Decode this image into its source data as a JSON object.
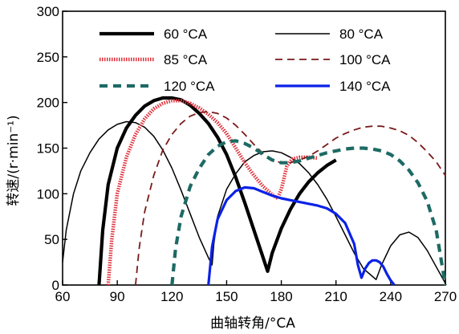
{
  "chart_data": {
    "type": "line",
    "title": "",
    "xlabel": "曲轴转角/°CA",
    "ylabel": "转速/(r·min⁻¹)",
    "xlim": [
      60,
      270
    ],
    "ylim": [
      0,
      300
    ],
    "xticks": [
      60,
      90,
      120,
      150,
      180,
      210,
      240,
      270
    ],
    "yticks": [
      0,
      50,
      100,
      150,
      200,
      250,
      300
    ],
    "xtick_labels": [
      "60",
      "90",
      "120",
      "150",
      "180",
      "210",
      "240",
      "270"
    ],
    "ytick_labels": [
      "0",
      "50",
      "100",
      "150",
      "200",
      "250",
      "300"
    ],
    "grid": false,
    "legend_position": "top",
    "series": [
      {
        "name": "60 °CA",
        "color": "#000000",
        "line_style": "solid-thick",
        "x": [
          80,
          82,
          85,
          90,
          95,
          100,
          105,
          110,
          115,
          120,
          125,
          130,
          135,
          140,
          145,
          150,
          155,
          160,
          165,
          170,
          172.5,
          175,
          180,
          185,
          190,
          195,
          200,
          205,
          210
        ],
        "y": [
          0,
          60,
          110,
          150,
          172,
          186,
          196,
          202,
          205,
          205,
          203,
          197,
          188,
          177,
          162,
          143,
          118,
          90,
          60,
          30,
          15,
          35,
          62,
          83,
          100,
          113,
          123,
          131,
          137
        ]
      },
      {
        "name": "80 °CA",
        "color": "#000000",
        "line_style": "solid-thin",
        "x": [
          60,
          62,
          66,
          70,
          75,
          80,
          85,
          90,
          95,
          100,
          105,
          110,
          115,
          120,
          125,
          130,
          135,
          140,
          142,
          143,
          145,
          150,
          155,
          160,
          165,
          170,
          175,
          180,
          185,
          190,
          195,
          200,
          205,
          210,
          215,
          220,
          225,
          232,
          235,
          240,
          245,
          250,
          255,
          260,
          265,
          270
        ],
        "y": [
          25,
          60,
          100,
          125,
          145,
          160,
          170,
          176,
          179,
          178,
          173,
          163,
          148,
          128,
          104,
          78,
          52,
          30,
          22,
          45,
          75,
          105,
          122,
          135,
          142,
          146,
          147,
          145,
          140,
          133,
          123,
          110,
          94,
          75,
          55,
          35,
          18,
          6,
          22,
          43,
          55,
          58,
          52,
          38,
          20,
          2
        ]
      },
      {
        "name": "85 °CA",
        "color": "#e0303a",
        "line_style": "hatched",
        "x": [
          85,
          87,
          90,
          95,
          100,
          105,
          110,
          115,
          120,
          125,
          130,
          135,
          140,
          145,
          150,
          155,
          160,
          165,
          170,
          175,
          178,
          180,
          183,
          186,
          190,
          195,
          200
        ],
        "y": [
          0,
          50,
          100,
          140,
          165,
          182,
          193,
          199,
          202,
          202,
          199,
          194,
          187,
          178,
          166,
          150,
          134,
          120,
          108,
          99,
          95,
          105,
          130,
          138,
          140,
          140,
          139
        ]
      },
      {
        "name": "100 °CA",
        "color": "#7a1a1a",
        "line_style": "dashed",
        "x": [
          100,
          102,
          105,
          110,
          115,
          120,
          125,
          130,
          135,
          140,
          145,
          150,
          155,
          160,
          165,
          170,
          175,
          180,
          185,
          190,
          195,
          200,
          205,
          210,
          215,
          220,
          225,
          230,
          235,
          240,
          245,
          250,
          255,
          260,
          265,
          270
        ],
        "y": [
          0,
          40,
          80,
          120,
          148,
          165,
          177,
          185,
          189,
          190,
          188,
          183,
          175,
          165,
          154,
          144,
          137,
          134,
          134,
          137,
          141,
          147,
          154,
          161,
          166,
          170,
          173,
          174,
          174,
          172,
          169,
          164,
          156,
          146,
          135,
          120
        ]
      },
      {
        "name": "120 °CA",
        "color": "#1d6a64",
        "line_style": "dashed-thick",
        "x": [
          120,
          122,
          125,
          130,
          135,
          140,
          145,
          150,
          155,
          160,
          165,
          170,
          175,
          180,
          185,
          190,
          195,
          200,
          205,
          210,
          215,
          220,
          225,
          230,
          235,
          240,
          245,
          250,
          255,
          260,
          265,
          270
        ],
        "y": [
          0,
          40,
          75,
          108,
          128,
          143,
          152,
          157,
          158,
          155,
          150,
          143,
          137,
          134,
          134,
          136,
          139,
          142,
          145,
          147,
          149,
          150,
          150,
          149,
          147,
          143,
          136,
          126,
          112,
          92,
          60,
          0
        ]
      },
      {
        "name": "140 °CA",
        "color": "#0b22e8",
        "line_style": "solid-medium",
        "x": [
          140,
          142,
          145,
          150,
          155,
          160,
          165,
          170,
          175,
          180,
          185,
          190,
          195,
          200,
          205,
          210,
          215,
          220,
          222,
          224,
          226,
          228,
          230,
          232,
          234,
          236,
          238,
          240,
          242
        ],
        "y": [
          0,
          42,
          72,
          93,
          103,
          107,
          106,
          102,
          98,
          95,
          93,
          91,
          89,
          87,
          84,
          78,
          68,
          45,
          22,
          8,
          18,
          24,
          27,
          27,
          25,
          20,
          12,
          5,
          0
        ]
      }
    ]
  },
  "legend_rows": [
    [
      "60 °CA",
      "80 °CA"
    ],
    [
      "85 °CA",
      "100 °CA"
    ],
    [
      "120 °CA",
      "140 °CA"
    ]
  ]
}
